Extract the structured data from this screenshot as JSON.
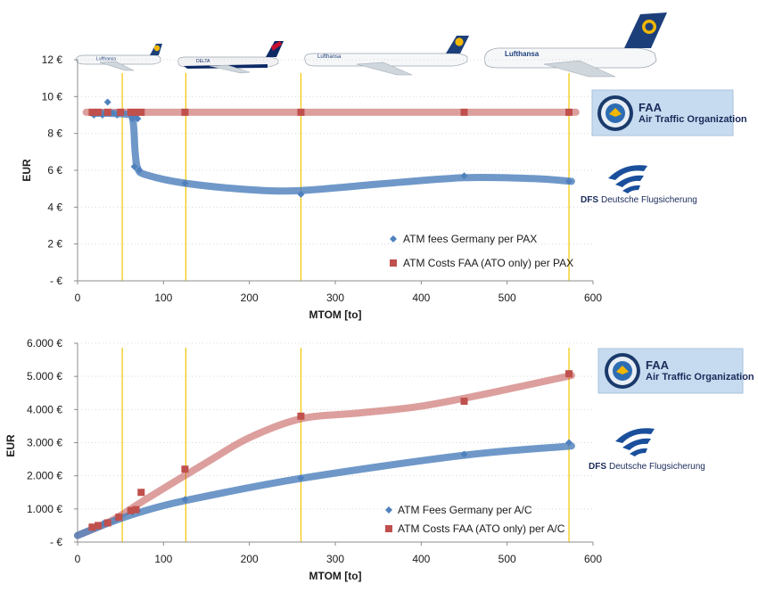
{
  "chart_data": [
    {
      "type": "scatter",
      "xlabel": "MTOM  [to]",
      "ylabel": "EUR",
      "xlim": [
        0,
        600
      ],
      "ylim": [
        0,
        12
      ],
      "x_ticks": [
        "0",
        "100",
        "200",
        "300",
        "400",
        "500",
        "600"
      ],
      "y_ticks": [
        "- €",
        "2 €",
        "4 €",
        "6 €",
        "8 €",
        "10 €",
        "12 €"
      ],
      "vlines": [
        52,
        126,
        260,
        572
      ],
      "legend_position": "lower-right",
      "series": [
        {
          "name": "ATM fees Germany per PAX",
          "marker": "diamond",
          "color": "#4f81bd",
          "points": [
            [
              17,
              9.1
            ],
            [
              18,
              9.1
            ],
            [
              19,
              9.0
            ],
            [
              20,
              9.1
            ],
            [
              24,
              9.1
            ],
            [
              29,
              9.0
            ],
            [
              35,
              9.7
            ],
            [
              40,
              9.1
            ],
            [
              46,
              9.0
            ],
            [
              52,
              9.1
            ],
            [
              62,
              9.0
            ],
            [
              64,
              8.8
            ],
            [
              66,
              6.2
            ],
            [
              68,
              9.0
            ],
            [
              70,
              8.8
            ],
            [
              72,
              6.0
            ],
            [
              125,
              5.3
            ],
            [
              260,
              4.7
            ],
            [
              450,
              5.7
            ],
            [
              572,
              5.4
            ]
          ],
          "trend": [
            [
              17,
              9.1
            ],
            [
              55,
              9.05
            ],
            [
              64,
              8.8
            ],
            [
              67,
              7.0
            ],
            [
              70,
              6.1
            ],
            [
              80,
              5.75
            ],
            [
              125,
              5.3
            ],
            [
              200,
              4.95
            ],
            [
              260,
              4.9
            ],
            [
              350,
              5.25
            ],
            [
              450,
              5.6
            ],
            [
              530,
              5.55
            ],
            [
              575,
              5.4
            ]
          ]
        },
        {
          "name": "ATM Costs FAA (ATO only) per PAX",
          "marker": "square",
          "color": "#c0504d",
          "points": [
            [
              17,
              9.15
            ],
            [
              24,
              9.15
            ],
            [
              35,
              9.15
            ],
            [
              50,
              9.15
            ],
            [
              62,
              9.15
            ],
            [
              68,
              9.15
            ],
            [
              74,
              9.15
            ],
            [
              125,
              9.15
            ],
            [
              260,
              9.15
            ],
            [
              450,
              9.15
            ],
            [
              572,
              9.15
            ]
          ],
          "trend": [
            [
              10,
              9.15
            ],
            [
              580,
              9.15
            ]
          ]
        }
      ],
      "logos": [
        {
          "name": "FAA",
          "line1": "FAA",
          "line2": "Air Traffic Organization"
        },
        {
          "name": "DFS",
          "abbr": "DFS",
          "text": "Deutsche Flugsicherung"
        }
      ],
      "aircraft_livery": [
        {
          "text": "Lufthansa"
        },
        {
          "text": "DELTA"
        },
        {
          "text": "Lufthansa"
        },
        {
          "text": "Lufthansa"
        }
      ]
    },
    {
      "type": "scatter",
      "xlabel": "MTOM [to]",
      "ylabel": "EUR",
      "xlim": [
        0,
        600
      ],
      "ylim": [
        0,
        6000
      ],
      "x_ticks": [
        "0",
        "100",
        "200",
        "300",
        "400",
        "500",
        "600"
      ],
      "y_ticks": [
        "- €",
        "1.000 €",
        "2.000 €",
        "3.000 €",
        "4.000 €",
        "5.000 €",
        "6.000 €"
      ],
      "vlines": [
        52,
        126,
        260,
        572
      ],
      "legend_position": "lower-right",
      "series": [
        {
          "name": "ATM Fees Germany per A/C",
          "marker": "diamond",
          "color": "#4f81bd",
          "points": [
            [
              17,
              430
            ],
            [
              20,
              450
            ],
            [
              24,
              480
            ],
            [
              30,
              560
            ],
            [
              36,
              600
            ],
            [
              46,
              720
            ],
            [
              64,
              900
            ],
            [
              70,
              950
            ],
            [
              125,
              1280
            ],
            [
              260,
              1930
            ],
            [
              450,
              2650
            ],
            [
              572,
              3000
            ]
          ],
          "trend": [
            [
              0,
              200
            ],
            [
              30,
              520
            ],
            [
              70,
              880
            ],
            [
              125,
              1250
            ],
            [
              260,
              1920
            ],
            [
              450,
              2620
            ],
            [
              575,
              2900
            ]
          ]
        },
        {
          "name": "ATM Costs FAA (ATO only) per A/C",
          "marker": "square",
          "color": "#c0504d",
          "points": [
            [
              17,
              450
            ],
            [
              24,
              500
            ],
            [
              35,
              580
            ],
            [
              48,
              750
            ],
            [
              62,
              950
            ],
            [
              68,
              980
            ],
            [
              74,
              1500
            ],
            [
              125,
              2200
            ],
            [
              260,
              3800
            ],
            [
              450,
              4250
            ],
            [
              572,
              5080
            ]
          ],
          "trend": [
            [
              0,
              200
            ],
            [
              40,
              650
            ],
            [
              80,
              1300
            ],
            [
              150,
              2400
            ],
            [
              200,
              3150
            ],
            [
              260,
              3720
            ],
            [
              330,
              3900
            ],
            [
              400,
              4100
            ],
            [
              480,
              4500
            ],
            [
              575,
              5030
            ]
          ]
        }
      ],
      "logos": [
        {
          "name": "FAA",
          "line1": "FAA",
          "line2": "Air Traffic Organization"
        },
        {
          "name": "DFS",
          "abbr": "DFS",
          "text": "Deutsche Flugsicherung"
        }
      ]
    }
  ]
}
